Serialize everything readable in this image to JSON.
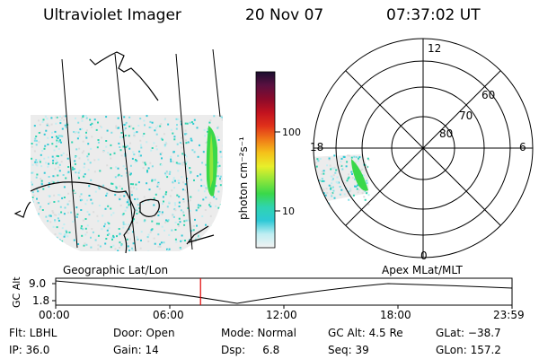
{
  "header": {
    "instrument": "Ultraviolet Imager",
    "date": "20 Nov 07",
    "time": "07:37:02 UT"
  },
  "colorbar": {
    "unit_label": "photon cm⁻²s⁻¹",
    "ticks": [
      "100",
      "10"
    ],
    "colors": [
      "#1a0d2e",
      "#5a1040",
      "#8b0a2a",
      "#c1121f",
      "#e0311a",
      "#f07a18",
      "#f5c21a",
      "#e8ef2a",
      "#8fe63a",
      "#3ad84a",
      "#2fd4b0",
      "#2ec9d6",
      "#bfeef2",
      "#f2f2f2"
    ]
  },
  "panels": {
    "left_label": "Geographic Lat/Lon",
    "right_label": "Apex MLat/MLT"
  },
  "polar": {
    "mlt_labels": {
      "top": "12",
      "left": "18",
      "right": "6",
      "bottom": "0"
    },
    "lat_labels": [
      "60",
      "70",
      "80"
    ]
  },
  "altitude_plot": {
    "axis_label": "GC Alt",
    "y_top": "9.0",
    "y_bottom": "1.8",
    "x_ticks": [
      "00:00",
      "06:00",
      "12:00",
      "18:00",
      "23:59"
    ],
    "marker_time": "07:37",
    "marker_color": "#e00000"
  },
  "footer": {
    "flt": "Flt: LBHL",
    "ip": "IP: 36.0",
    "door": "Door: Open",
    "gain": "Gain: 14",
    "mode": "Mode: Normal",
    "dsp": "Dsp:     6.8",
    "gcalt": "GC Alt: 4.5 Re",
    "seq": "Seq: 39",
    "glat": "GLat: −38.7",
    "glon": "GLon: 157.2"
  }
}
